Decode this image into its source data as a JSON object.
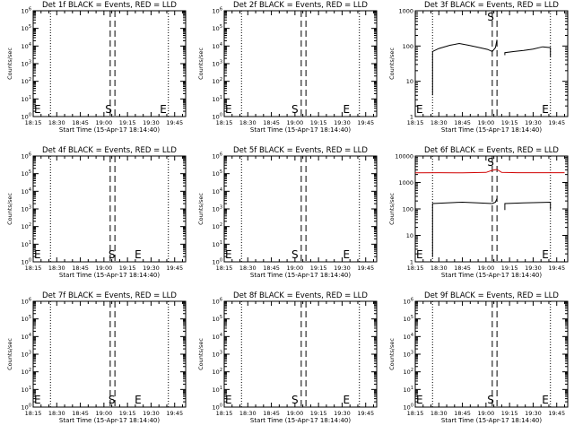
{
  "chart_data": [
    {
      "type": "line",
      "title": "Det 1f BLACK = Events, RED = LLD",
      "xlabel": "Start Time (15-Apr-17 18:14:40)",
      "ylabel": "Counts/sec",
      "y_scale": "log",
      "ylim": [
        1,
        1000000
      ],
      "y_ticks": [
        "10^0",
        "10^1",
        "10^2",
        "10^3",
        "10^4",
        "10^5",
        "10^6"
      ],
      "series": []
    },
    {
      "type": "line",
      "title": "Det 2f BLACK = Events, RED = LLD",
      "xlabel": "Start Time (15-Apr-17 18:14:40)",
      "ylabel": "Counts/sec",
      "y_scale": "log",
      "ylim": [
        1,
        1000000
      ],
      "y_ticks": [
        "10^0",
        "10^1",
        "10^2",
        "10^3",
        "10^4",
        "10^5",
        "10^6"
      ],
      "series": []
    },
    {
      "type": "line",
      "title": "Det 3f BLACK = Events, RED = LLD",
      "xlabel": "Start Time (15-Apr-17 18:14:40)",
      "ylabel": "Counts/sec",
      "y_scale": "log",
      "ylim": [
        1,
        1000
      ],
      "y_ticks": [
        "1",
        "10",
        "100",
        "1000"
      ],
      "series": [
        {
          "color": "#000000",
          "segments": [
            {
              "x": [
                "18:26",
                "18:26",
                "18:30",
                "18:37",
                "18:43",
                "18:49",
                "18:55",
                "19:01",
                "19:04"
              ],
              "y": [
                4,
                70,
                85,
                105,
                118,
                105,
                92,
                80,
                70
              ]
            },
            {
              "x": [
                "19:04",
                "19:06",
                "19:07"
              ],
              "y": [
                70,
                90,
                150
              ]
            },
            {
              "x": [
                "19:12",
                "19:12",
                "19:18",
                "19:24",
                "19:30",
                "19:36",
                "19:41",
                "19:41"
              ],
              "y": [
                55,
                65,
                70,
                75,
                82,
                95,
                90,
                50
              ]
            }
          ]
        }
      ]
    },
    {
      "type": "line",
      "title": "Det 4f BLACK = Events, RED = LLD",
      "xlabel": "Start Time (15-Apr-17 18:14:40)",
      "ylabel": "Counts/sec",
      "y_scale": "log",
      "ylim": [
        1,
        1000000
      ],
      "y_ticks": [
        "10^0",
        "10^1",
        "10^2",
        "10^3",
        "10^4",
        "10^5",
        "10^6"
      ],
      "series": []
    },
    {
      "type": "line",
      "title": "Det 5f BLACK = Events, RED = LLD",
      "xlabel": "Start Time (15-Apr-17 18:14:40)",
      "ylabel": "Counts/sec",
      "y_scale": "log",
      "ylim": [
        1,
        1000000
      ],
      "y_ticks": [
        "10^0",
        "10^1",
        "10^2",
        "10^3",
        "10^4",
        "10^5",
        "10^6"
      ],
      "series": []
    },
    {
      "type": "line",
      "title": "Det 6f BLACK = Events, RED = LLD",
      "xlabel": "Start Time (15-Apr-17 18:14:40)",
      "ylabel": "Counts/sec",
      "y_scale": "log",
      "ylim": [
        1,
        10000
      ],
      "y_ticks": [
        "1",
        "10",
        "100",
        "1000",
        "10000"
      ],
      "series": [
        {
          "color": "#000000",
          "segments": [
            {
              "x": [
                "18:26",
                "18:26",
                "18:35",
                "18:45",
                "18:55",
                "19:04"
              ],
              "y": [
                1.5,
                160,
                170,
                180,
                170,
                160
              ]
            },
            {
              "x": [
                "19:04",
                "19:06",
                "19:07"
              ],
              "y": [
                160,
                180,
                250
              ]
            },
            {
              "x": [
                "19:12",
                "19:12",
                "19:24",
                "19:36",
                "19:41",
                "19:41"
              ],
              "y": [
                90,
                160,
                170,
                175,
                180,
                95
              ]
            }
          ]
        },
        {
          "color": "#d00000",
          "segments": [
            {
              "x": [
                "18:15",
                "18:30",
                "18:45",
                "19:00",
                "19:04",
                "19:07",
                "19:10",
                "19:20",
                "19:35",
                "19:50"
              ],
              "y": [
                2300,
                2350,
                2300,
                2400,
                2900,
                3100,
                2400,
                2350,
                2350,
                2350
              ]
            }
          ]
        }
      ]
    },
    {
      "type": "line",
      "title": "Det 7f BLACK = Events, RED = LLD",
      "xlabel": "Start Time (15-Apr-17 18:14:40)",
      "ylabel": "Counts/sec",
      "y_scale": "log",
      "ylim": [
        1,
        1000000
      ],
      "y_ticks": [
        "10^0",
        "10^1",
        "10^2",
        "10^3",
        "10^4",
        "10^5",
        "10^6"
      ],
      "series": []
    },
    {
      "type": "line",
      "title": "Det 8f BLACK = Events, RED = LLD",
      "xlabel": "Start Time (15-Apr-17 18:14:40)",
      "ylabel": "Counts/sec",
      "y_scale": "log",
      "ylim": [
        1,
        1000000
      ],
      "y_ticks": [
        "10^0",
        "10^1",
        "10^2",
        "10^3",
        "10^4",
        "10^5",
        "10^6"
      ],
      "series": []
    },
    {
      "type": "line",
      "title": "Det 9f BLACK = Events, RED = LLD",
      "xlabel": "Start Time (15-Apr-17 18:14:40)",
      "ylabel": "Counts/sec",
      "y_scale": "log",
      "ylim": [
        1,
        1000000
      ],
      "y_ticks": [
        "10^0",
        "10^1",
        "10^2",
        "10^3",
        "10^4",
        "10^5",
        "10^6"
      ],
      "series": []
    }
  ],
  "x_axis": {
    "xlim": [
      "18:15",
      "19:52"
    ],
    "tick_labels": [
      "18:15",
      "18:30",
      "18:45",
      "19:00",
      "19:15",
      "19:30",
      "19:45"
    ],
    "dotted_lines": [
      "18:26",
      "19:41"
    ],
    "dashed_lines": [
      "19:04",
      "19:07"
    ]
  },
  "markers": {
    "E_label": "E",
    "S_label": "S",
    "placement": [
      {
        "E": [
          "18:15",
          "19:35"
        ],
        "S": "19:03"
      },
      {
        "E": [
          "18:15",
          "19:30"
        ],
        "S": "19:00"
      },
      {
        "E": [
          "18:15",
          "19:35"
        ],
        "S": "19:03"
      },
      {
        "E": [
          "18:15",
          "19:19"
        ],
        "S": "19:05"
      },
      {
        "E": [
          "18:15",
          "19:30"
        ],
        "S": "19:00"
      },
      {
        "E": [
          "18:15",
          "19:35"
        ],
        "S": "19:03"
      },
      {
        "E": [
          "18:15",
          "19:19"
        ],
        "S": "19:05"
      },
      {
        "E": [
          "18:15",
          "19:30"
        ],
        "S": "19:00"
      },
      {
        "E": [
          "18:15",
          "19:35"
        ],
        "S": "19:03"
      }
    ]
  },
  "colors": {
    "events": "#000000",
    "lld": "#d00000"
  }
}
